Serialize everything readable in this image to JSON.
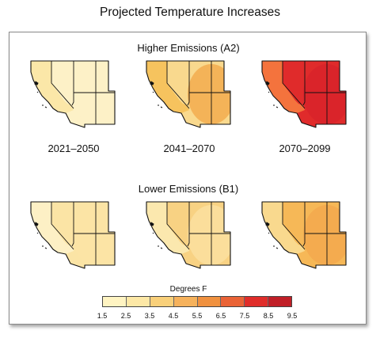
{
  "title": "Projected Temperature Increases",
  "sections": [
    {
      "label": "Higher Emissions (A2)",
      "maps": [
        {
          "period": "2021–2050",
          "outer": "#fbe7a8",
          "inner": "#fdf1c7",
          "core": "#fdf1c7"
        },
        {
          "period": "2041–2070",
          "outer": "#f6c35e",
          "inner": "#f9d98e",
          "core": "#f3ac4f"
        },
        {
          "period": "2070–2099",
          "outer": "#f4733d",
          "inner": "#e02b2b",
          "core": "#d8232a"
        }
      ]
    },
    {
      "label": "Lower Emissions (B1)",
      "maps": [
        {
          "period": "",
          "outer": "#fdf0c5",
          "inner": "#fbe4a5",
          "core": "#fbe4a5"
        },
        {
          "period": "",
          "outer": "#fbe8ae",
          "inner": "#f8d283",
          "core": "#fbe0a0"
        },
        {
          "period": "",
          "outer": "#f9d98e",
          "inner": "#f6b857",
          "core": "#f3a84e"
        }
      ]
    }
  ],
  "legend": {
    "title": "Degrees F",
    "ticks": [
      "1.5",
      "2.5",
      "3.5",
      "4.5",
      "5.5",
      "6.5",
      "7.5",
      "8.5",
      "9.5"
    ],
    "colors": [
      "#fff4c2",
      "#fde8a6",
      "#f9d07a",
      "#f6b25c",
      "#f0913f",
      "#ea6336",
      "#e02d2a",
      "#c01f27"
    ]
  }
}
